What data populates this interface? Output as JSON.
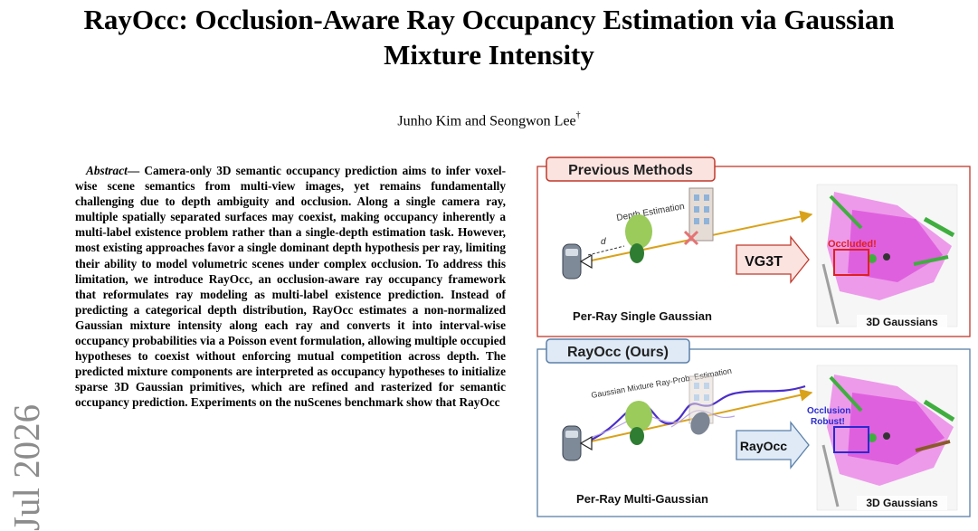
{
  "paper": {
    "title_line1": "RayOcc: Occlusion-Aware Ray Occupancy Estimation via Gaussian",
    "title_line2": "Mixture Intensity",
    "authors": "Junho Kim and Seongwon Lee",
    "author_mark": "†",
    "watermark": "Jul 2026",
    "abstract_label": "Abstract",
    "abstract_dash": "—",
    "abstract_text": "Camera-only 3D semantic occupancy prediction aims to infer voxel-wise scene semantics from multi-view images, yet remains fundamentally challenging due to depth ambiguity and occlusion. Along a single camera ray, multiple spatially separated surfaces may coexist, making occupancy inherently a multi-label existence problem rather than a single-depth estimation task. However, most existing approaches favor a single dominant depth hypothesis per ray, limiting their ability to model volumetric scenes under complex occlusion. To address this limitation, we introduce RayOcc, an occlusion-aware ray occupancy framework that reformulates ray modeling as multi-label existence prediction. Instead of predicting a categorical depth distribution, RayOcc estimates a non-normalized Gaussian mixture intensity along each ray and converts it into interval-wise occupancy probabilities via a Poisson event formulation, allowing multiple occupied hypotheses to coexist without enforcing mutual competition across depth. The predicted mixture components are interpreted as occupancy hypotheses to initialize sparse 3D Gaussian primitives, which are refined and rasterized for semantic occupancy prediction. Experiments on the nuScenes benchmark show that RayOcc"
  },
  "figure": {
    "top": {
      "header": "Previous Methods",
      "estimation_label": "Depth Estimation",
      "distance_label": "d",
      "arrow_label": "VG3T",
      "callout": "Occluded!",
      "caption": "Per-Ray Single Gaussian",
      "gaussians_label": "3D Gaussians"
    },
    "bottom": {
      "header": "RayOcc (Ours)",
      "estimation_label": "Gaussian Mixture Ray-Prob. Estimation",
      "arrow_label": "RayOcc",
      "callout_line1": "Occlusion",
      "callout_line2": "Robust!",
      "caption": "Per-Ray Multi-Gaussian",
      "gaussians_label": "3D Gaussians"
    },
    "colors": {
      "previous_accent": "#c0392b",
      "previous_header_bg": "#fbe3e0",
      "ours_accent": "#5a7fa8",
      "ours_header_bg": "#dfeaf6",
      "ray": "#d9a21b",
      "mixture_curve": "#4b2fc9",
      "occluded_callout": "#e02020",
      "robust_callout": "#2a2ad0",
      "point_cloud": "#e64fe0"
    }
  }
}
